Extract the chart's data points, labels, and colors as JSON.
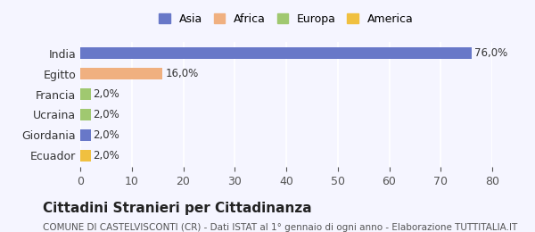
{
  "categories": [
    "Ecuador",
    "Giordania",
    "Ucraina",
    "Francia",
    "Egitto",
    "India"
  ],
  "values": [
    2.0,
    2.0,
    2.0,
    2.0,
    16.0,
    76.0
  ],
  "colors": [
    "#f0c040",
    "#6878c8",
    "#a0c870",
    "#a0c870",
    "#f0b080",
    "#6878c8"
  ],
  "bar_colors_legend": [
    "#6878c8",
    "#f0b080",
    "#a0c870",
    "#f0c040"
  ],
  "legend_labels": [
    "Asia",
    "Africa",
    "Europa",
    "America"
  ],
  "labels": [
    "2,0%",
    "2,0%",
    "2,0%",
    "2,0%",
    "16,0%",
    "76,0%"
  ],
  "xlim": [
    0,
    80
  ],
  "xticks": [
    0,
    10,
    20,
    30,
    40,
    50,
    60,
    70,
    80
  ],
  "title": "Cittadini Stranieri per Cittadinanza",
  "subtitle": "COMUNE DI CASTELVISCONTI (CR) - Dati ISTAT al 1° gennaio di ogni anno - Elaborazione TUTTITALIA.IT",
  "background_color": "#f5f5ff",
  "bar_height": 0.55,
  "title_fontsize": 11,
  "subtitle_fontsize": 7.5,
  "legend_fontsize": 9,
  "tick_fontsize": 9
}
